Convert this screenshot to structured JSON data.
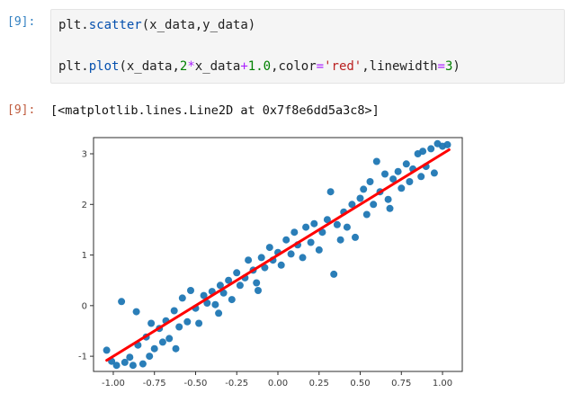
{
  "notebook": {
    "input_prompt": "[9]:",
    "output_prompt": "[9]:",
    "code_lines": [
      [
        {
          "t": "plt"
        },
        {
          "t": "."
        },
        {
          "t": "scatter",
          "c": "property"
        },
        {
          "t": "(x_data,y_data)"
        }
      ],
      [],
      [
        {
          "t": "plt"
        },
        {
          "t": "."
        },
        {
          "t": "plot",
          "c": "property"
        },
        {
          "t": "(x_data,"
        },
        {
          "t": "2",
          "c": "number"
        },
        {
          "t": "*",
          "c": "operator"
        },
        {
          "t": "x_data"
        },
        {
          "t": "+",
          "c": "operator"
        },
        {
          "t": "1.0",
          "c": "number"
        },
        {
          "t": ",color"
        },
        {
          "t": "=",
          "c": "operator"
        },
        {
          "t": "'red'",
          "c": "string"
        },
        {
          "t": ",linewidth"
        },
        {
          "t": "=",
          "c": "operator"
        },
        {
          "t": "3",
          "c": "number"
        },
        {
          "t": ")"
        }
      ]
    ],
    "output_text": "[<matplotlib.lines.Line2D at 0x7f8e6dd5a3c8>]"
  },
  "colors": {
    "in_prompt": "#307fc1",
    "out_prompt": "#bf5b3d",
    "editor_background": "#f5f5f5",
    "scatter": "#1f77b4",
    "line": "#ff0000"
  },
  "chart_data": {
    "type": "scatter",
    "title": "",
    "xlabel": "",
    "ylabel": "",
    "xlim": [
      -1.12,
      1.12
    ],
    "ylim": [
      -1.3,
      3.32
    ],
    "xticks": [
      -1.0,
      -0.75,
      -0.5,
      -0.25,
      0.0,
      0.25,
      0.5,
      0.75,
      1.0
    ],
    "xtick_labels": [
      "-1.00",
      "-0.75",
      "-0.50",
      "-0.25",
      "0.00",
      "0.25",
      "0.50",
      "0.75",
      "1.00"
    ],
    "yticks": [
      -1,
      0,
      1,
      2,
      3
    ],
    "ytick_labels": [
      "-1",
      "0",
      "1",
      "2",
      "3"
    ],
    "grid": false,
    "legend": false,
    "series": [
      {
        "name": "scatter: (x_data, y_data)",
        "type": "scatter",
        "color": "#1f77b4",
        "points": [
          [
            -1.04,
            -0.88
          ],
          [
            -1.01,
            -1.1
          ],
          [
            -0.98,
            -1.18
          ],
          [
            -0.95,
            0.08
          ],
          [
            -0.93,
            -1.12
          ],
          [
            -0.9,
            -1.02
          ],
          [
            -0.88,
            -1.18
          ],
          [
            -0.86,
            -0.12
          ],
          [
            -0.85,
            -0.78
          ],
          [
            -0.82,
            -1.15
          ],
          [
            -0.8,
            -0.62
          ],
          [
            -0.78,
            -1.0
          ],
          [
            -0.77,
            -0.35
          ],
          [
            -0.75,
            -0.85
          ],
          [
            -0.72,
            -0.45
          ],
          [
            -0.7,
            -0.72
          ],
          [
            -0.68,
            -0.3
          ],
          [
            -0.66,
            -0.65
          ],
          [
            -0.63,
            -0.1
          ],
          [
            -0.62,
            -0.85
          ],
          [
            -0.6,
            -0.42
          ],
          [
            -0.58,
            0.15
          ],
          [
            -0.55,
            -0.32
          ],
          [
            -0.53,
            0.3
          ],
          [
            -0.5,
            -0.05
          ],
          [
            -0.48,
            -0.35
          ],
          [
            -0.45,
            0.2
          ],
          [
            -0.43,
            0.05
          ],
          [
            -0.4,
            0.28
          ],
          [
            -0.38,
            0.02
          ],
          [
            -0.36,
            -0.15
          ],
          [
            -0.35,
            0.4
          ],
          [
            -0.33,
            0.25
          ],
          [
            -0.3,
            0.5
          ],
          [
            -0.28,
            0.12
          ],
          [
            -0.25,
            0.65
          ],
          [
            -0.23,
            0.4
          ],
          [
            -0.2,
            0.55
          ],
          [
            -0.18,
            0.9
          ],
          [
            -0.15,
            0.7
          ],
          [
            -0.13,
            0.45
          ],
          [
            -0.12,
            0.3
          ],
          [
            -0.1,
            0.95
          ],
          [
            -0.08,
            0.75
          ],
          [
            -0.05,
            1.15
          ],
          [
            -0.03,
            0.9
          ],
          [
            0.0,
            1.05
          ],
          [
            0.02,
            0.8
          ],
          [
            0.05,
            1.3
          ],
          [
            0.08,
            1.02
          ],
          [
            0.1,
            1.45
          ],
          [
            0.12,
            1.2
          ],
          [
            0.15,
            0.95
          ],
          [
            0.17,
            1.55
          ],
          [
            0.2,
            1.25
          ],
          [
            0.22,
            1.62
          ],
          [
            0.25,
            1.1
          ],
          [
            0.27,
            1.45
          ],
          [
            0.3,
            1.7
          ],
          [
            0.32,
            2.25
          ],
          [
            0.34,
            0.62
          ],
          [
            0.36,
            1.6
          ],
          [
            0.38,
            1.3
          ],
          [
            0.4,
            1.85
          ],
          [
            0.42,
            1.55
          ],
          [
            0.45,
            2.0
          ],
          [
            0.47,
            1.35
          ],
          [
            0.5,
            2.12
          ],
          [
            0.52,
            2.3
          ],
          [
            0.54,
            1.8
          ],
          [
            0.56,
            2.45
          ],
          [
            0.58,
            2.0
          ],
          [
            0.6,
            2.85
          ],
          [
            0.62,
            2.25
          ],
          [
            0.65,
            2.6
          ],
          [
            0.67,
            2.1
          ],
          [
            0.68,
            1.92
          ],
          [
            0.7,
            2.5
          ],
          [
            0.73,
            2.65
          ],
          [
            0.75,
            2.32
          ],
          [
            0.78,
            2.8
          ],
          [
            0.8,
            2.45
          ],
          [
            0.82,
            2.7
          ],
          [
            0.85,
            3.0
          ],
          [
            0.87,
            2.55
          ],
          [
            0.88,
            3.05
          ],
          [
            0.9,
            2.75
          ],
          [
            0.93,
            3.1
          ],
          [
            0.95,
            2.62
          ],
          [
            0.97,
            3.2
          ],
          [
            1.0,
            3.15
          ],
          [
            1.03,
            3.18
          ]
        ]
      },
      {
        "name": "line: 2*x_data+1.0",
        "type": "line",
        "color": "#ff0000",
        "linewidth": 3,
        "points": [
          [
            -1.04,
            -1.08
          ],
          [
            1.04,
            3.08
          ]
        ]
      }
    ]
  }
}
